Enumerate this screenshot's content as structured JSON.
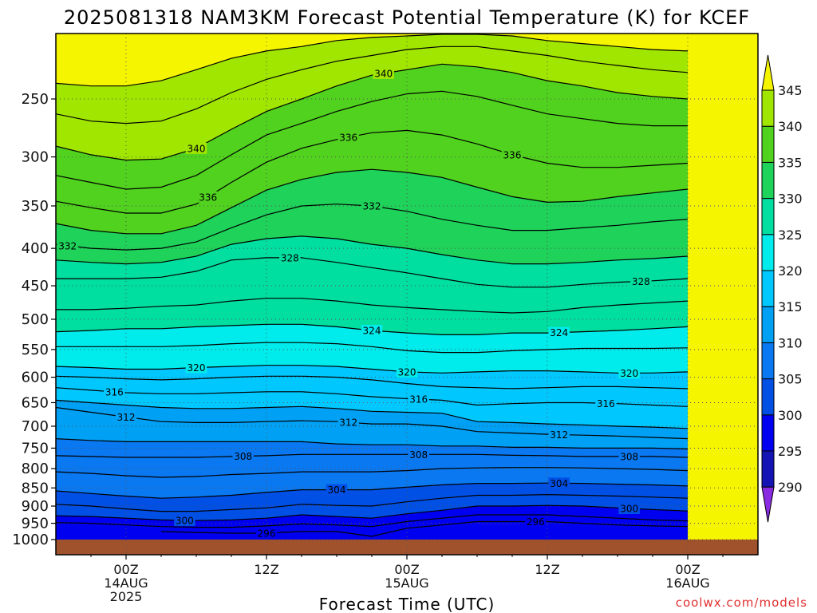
{
  "title": "2025081318 NAM3KM Forecast Potential Temperature (K) for KCEF",
  "credit": "coolwx.com/models",
  "chart_data": {
    "type": "heatmap",
    "title": "2025081318 NAM3KM Forecast Potential Temperature (K) for KCEF",
    "xlabel": "Forecast Time (UTC)",
    "ylabel": "",
    "x_range_hours": [
      -6,
      54
    ],
    "x_ticks": [
      {
        "hour": 0,
        "lines": [
          "00Z",
          "14AUG",
          "2025"
        ]
      },
      {
        "hour": 12,
        "lines": [
          "12Z"
        ]
      },
      {
        "hour": 24,
        "lines": [
          "00Z",
          "15AUG"
        ]
      },
      {
        "hour": 36,
        "lines": [
          "12Z"
        ]
      },
      {
        "hour": 48,
        "lines": [
          "00Z",
          "16AUG"
        ]
      }
    ],
    "y_ticks": [
      250,
      300,
      350,
      400,
      450,
      500,
      550,
      600,
      650,
      700,
      750,
      800,
      850,
      900,
      950,
      1000
    ],
    "y_range_hpa": [
      200,
      1000
    ],
    "y_scale": "log",
    "colorbar": {
      "levels": [
        290,
        295,
        300,
        305,
        310,
        315,
        320,
        325,
        330,
        335,
        340,
        345
      ],
      "colors": [
        "#8a2be2",
        "#1414b4",
        "#0000f0",
        "#0050e6",
        "#0a78f0",
        "#00a0f5",
        "#00c8ff",
        "#00ebeb",
        "#00dfa0",
        "#1ed25a",
        "#50d21e",
        "#a0e600",
        "#f5f500"
      ]
    },
    "contour_interval": 2,
    "contours": [
      {
        "value": 296,
        "hpa": [
          null,
          null,
          null,
          975,
          978,
          980,
          980,
          975,
          975,
          990,
          965,
          955,
          945,
          945,
          945,
          950,
          955,
          958,
          960
        ],
        "labels": [
          {
            "hour": 12,
            "text": "296"
          },
          {
            "hour": 35,
            "text": "296"
          }
        ]
      },
      {
        "value": 298,
        "hpa": [
          948,
          950,
          955,
          960,
          962,
          962,
          958,
          952,
          955,
          960,
          945,
          935,
          925,
          925,
          925,
          930,
          935,
          940,
          943
        ]
      },
      {
        "value": 300,
        "hpa": [
          928,
          930,
          935,
          940,
          942,
          940,
          935,
          925,
          930,
          935,
          922,
          912,
          900,
          900,
          898,
          900,
          905,
          910,
          914
        ],
        "labels": [
          {
            "hour": 5,
            "text": "300"
          },
          {
            "hour": 43,
            "text": "300"
          }
        ]
      },
      {
        "value": 302,
        "hpa": [
          895,
          900,
          908,
          915,
          915,
          910,
          905,
          895,
          898,
          900,
          888,
          878,
          870,
          870,
          868,
          870,
          872,
          875,
          878
        ]
      },
      {
        "value": 304,
        "hpa": [
          858,
          865,
          872,
          878,
          875,
          870,
          862,
          855,
          855,
          855,
          848,
          842,
          838,
          838,
          837,
          838,
          840,
          842,
          845
        ],
        "labels": [
          {
            "hour": 18,
            "text": "304"
          },
          {
            "hour": 37,
            "text": "304"
          }
        ]
      },
      {
        "value": 306,
        "hpa": [
          808,
          812,
          818,
          822,
          820,
          815,
          812,
          808,
          808,
          808,
          805,
          800,
          798,
          797,
          797,
          798,
          800,
          802,
          805
        ]
      },
      {
        "value": 308,
        "hpa": [
          768,
          770,
          772,
          772,
          772,
          770,
          768,
          765,
          765,
          765,
          765,
          765,
          765,
          767,
          768,
          770,
          770,
          770,
          772
        ],
        "labels": [
          {
            "hour": 10,
            "text": "308"
          },
          {
            "hour": 25,
            "text": "308"
          },
          {
            "hour": 43,
            "text": "308"
          }
        ]
      },
      {
        "value": 310,
        "hpa": [
          728,
          732,
          735,
          735,
          735,
          735,
          735,
          735,
          740,
          742,
          742,
          745,
          745,
          748,
          748,
          750,
          750,
          750,
          752
        ]
      },
      {
        "value": 312,
        "hpa": [
          660,
          670,
          680,
          690,
          692,
          692,
          690,
          688,
          690,
          695,
          695,
          700,
          712,
          715,
          718,
          720,
          722,
          725,
          728
        ],
        "labels": [
          {
            "hour": 0,
            "text": "312"
          },
          {
            "hour": 19,
            "text": "312"
          },
          {
            "hour": 37,
            "text": "312"
          }
        ]
      },
      {
        "value": 314,
        "hpa": [
          645,
          650,
          655,
          660,
          662,
          662,
          660,
          658,
          662,
          668,
          670,
          672,
          690,
          692,
          695,
          697,
          700,
          702,
          705
        ]
      },
      {
        "value": 316,
        "hpa": [
          620,
          625,
          630,
          632,
          632,
          630,
          628,
          628,
          632,
          638,
          642,
          645,
          655,
          652,
          650,
          650,
          652,
          655,
          658
        ],
        "labels": [
          {
            "hour": -1,
            "text": "316"
          },
          {
            "hour": 25,
            "text": "316"
          },
          {
            "hour": 41,
            "text": "316"
          }
        ]
      },
      {
        "value": 318,
        "hpa": [
          598,
          600,
          603,
          605,
          603,
          600,
          598,
          598,
          600,
          605,
          612,
          618,
          620,
          622,
          620,
          618,
          618,
          620,
          622
        ]
      },
      {
        "value": 320,
        "hpa": [
          580,
          582,
          585,
          585,
          582,
          580,
          578,
          578,
          580,
          585,
          590,
          592,
          590,
          588,
          588,
          590,
          592,
          592,
          590
        ],
        "labels": [
          {
            "hour": 6,
            "text": "320"
          },
          {
            "hour": 24,
            "text": "320"
          },
          {
            "hour": 43,
            "text": "320"
          }
        ]
      },
      {
        "value": 322,
        "hpa": [
          545,
          545,
          545,
          545,
          543,
          540,
          538,
          538,
          540,
          545,
          552,
          555,
          555,
          552,
          550,
          548,
          548,
          548,
          547
        ]
      },
      {
        "value": 324,
        "hpa": [
          520,
          518,
          515,
          515,
          512,
          510,
          508,
          508,
          512,
          518,
          522,
          525,
          525,
          522,
          522,
          520,
          518,
          515,
          512
        ],
        "labels": [
          {
            "hour": 21,
            "text": "324"
          },
          {
            "hour": 37,
            "text": "324"
          }
        ]
      },
      {
        "value": 326,
        "hpa": [
          485,
          485,
          483,
          480,
          478,
          472,
          468,
          468,
          472,
          478,
          482,
          485,
          488,
          490,
          488,
          482,
          478,
          475,
          472
        ]
      },
      {
        "value": 328,
        "hpa": [
          440,
          440,
          440,
          438,
          430,
          415,
          412,
          412,
          418,
          425,
          432,
          440,
          448,
          452,
          452,
          448,
          445,
          443,
          440
        ],
        "labels": [
          {
            "hour": 14,
            "text": "328"
          },
          {
            "hour": 44,
            "text": "328"
          }
        ]
      },
      {
        "value": 330,
        "hpa": [
          415,
          418,
          420,
          418,
          410,
          395,
          388,
          385,
          388,
          395,
          400,
          408,
          415,
          420,
          420,
          418,
          415,
          413,
          410
        ]
      },
      {
        "value": 332,
        "hpa": [
          395,
          400,
          402,
          400,
          392,
          375,
          360,
          350,
          348,
          350,
          356,
          365,
          372,
          378,
          378,
          375,
          372,
          368,
          365
        ],
        "labels": [
          {
            "hour": -5,
            "text": "332"
          },
          {
            "hour": 21,
            "text": "332"
          }
        ]
      },
      {
        "value": 334,
        "hpa": [
          370,
          378,
          382,
          382,
          372,
          352,
          333,
          322,
          315,
          312,
          315,
          320,
          330,
          340,
          346,
          345,
          340,
          336,
          332
        ]
      },
      {
        "value": 336,
        "hpa": [
          345,
          352,
          358,
          358,
          348,
          325,
          305,
          292,
          284,
          278,
          276,
          280,
          288,
          298,
          306,
          310,
          310,
          308,
          306
        ],
        "labels": [
          {
            "hour": 7,
            "text": "336"
          },
          {
            "hour": 19,
            "text": "336"
          },
          {
            "hour": 33,
            "text": "336"
          }
        ]
      },
      {
        "value": 338,
        "hpa": [
          318,
          325,
          332,
          330,
          318,
          298,
          280,
          270,
          260,
          252,
          246,
          244,
          248,
          255,
          262,
          266,
          270,
          272,
          272
        ]
      },
      {
        "value": 340,
        "hpa": [
          290,
          298,
          303,
          302,
          292,
          275,
          260,
          250,
          240,
          232,
          228,
          224,
          226,
          230,
          236,
          240,
          245,
          248,
          250
        ],
        "labels": [
          {
            "hour": 6,
            "text": "340"
          },
          {
            "hour": 22,
            "text": "340"
          }
        ]
      },
      {
        "value": 342,
        "hpa": [
          262,
          268,
          270,
          268,
          258,
          245,
          235,
          228,
          222,
          218,
          214,
          212,
          212,
          215,
          218,
          222,
          225,
          228,
          230
        ]
      },
      {
        "value": 344,
        "hpa": [
          238,
          240,
          240,
          236,
          228,
          220,
          215,
          212,
          208,
          206,
          205,
          204,
          204,
          205,
          208,
          210,
          212,
          214,
          215
        ]
      }
    ]
  }
}
